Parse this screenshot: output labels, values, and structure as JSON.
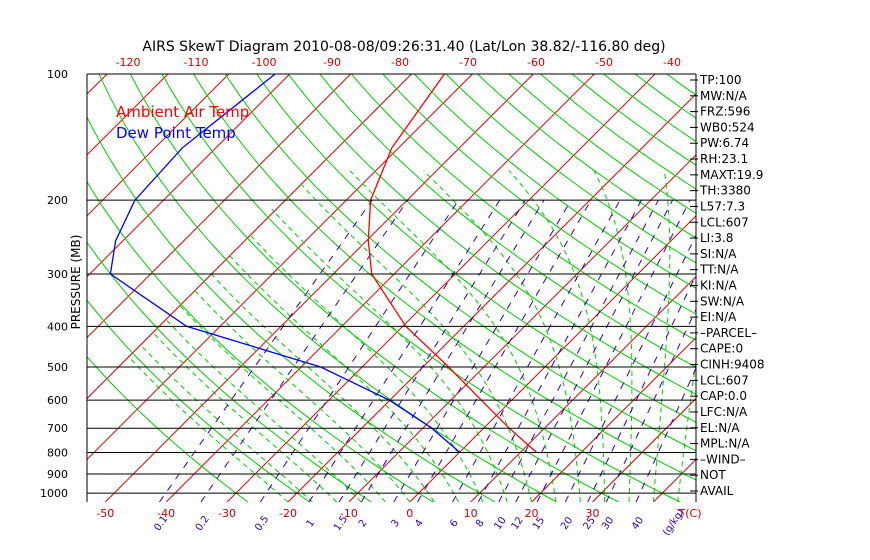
{
  "chart_data": {
    "type": "line",
    "title": "AIRS SkewT Diagram 2010-08-08/09:26:31.40 (Lat/Lon 38.82/-116.80 deg)",
    "ylabel": "PRESSURE (MB)",
    "y_scale": "log",
    "ylim": [
      1050,
      100
    ],
    "xlim_bottom": [
      -53,
      47
    ],
    "pressure_ticks": [
      100,
      200,
      300,
      400,
      500,
      600,
      700,
      800,
      900,
      1000
    ],
    "bottom_temp_ticks": [
      -50,
      -40,
      -30,
      -20,
      -10,
      0,
      10,
      20,
      30
    ],
    "bottom_temp_unit": "T(C)",
    "top_temp_ticks": [
      -120,
      -110,
      -100,
      -90,
      -80,
      -70,
      -60,
      -50,
      -40
    ],
    "mixing_ratio_ticks": [
      "0.1",
      "0.2",
      "0.5",
      "1",
      "1.5",
      "2",
      "3",
      "4",
      "6",
      "8",
      "10",
      "12",
      "15",
      "20",
      "25",
      "30",
      "40"
    ],
    "mixing_ratio_unit": "(g/kg)",
    "legend": [
      {
        "name": "Ambient Air Temp",
        "color": "#ff0000"
      },
      {
        "name": "Dew Point Temp",
        "color": "#0000ff"
      }
    ],
    "series": [
      {
        "name": "Ambient Air Temp",
        "color": "#ff0000",
        "points": [
          {
            "p": 100,
            "t": -64.6
          },
          {
            "p": 150,
            "t": -61.1
          },
          {
            "p": 200,
            "t": -56.0
          },
          {
            "p": 250,
            "t": -49.7
          },
          {
            "p": 300,
            "t": -43.7
          },
          {
            "p": 400,
            "t": -29.5
          },
          {
            "p": 500,
            "t": -15.8
          },
          {
            "p": 600,
            "t": -5.0
          },
          {
            "p": 700,
            "t": 4.2
          },
          {
            "p": 800,
            "t": 12.7
          }
        ]
      },
      {
        "name": "Dew Point Temp",
        "color": "#0000ff",
        "points": [
          {
            "p": 100,
            "t": -92.4
          },
          {
            "p": 150,
            "t": -95.5
          },
          {
            "p": 200,
            "t": -94.7
          },
          {
            "p": 250,
            "t": -91.2
          },
          {
            "p": 300,
            "t": -86.6
          },
          {
            "p": 400,
            "t": -65.5
          },
          {
            "p": 500,
            "t": -36.8
          },
          {
            "p": 600,
            "t": -20.1
          },
          {
            "p": 700,
            "t": -8.5
          },
          {
            "p": 800,
            "t": 0.1
          }
        ]
      }
    ],
    "indices": [
      "TP:100",
      "MW:N/A",
      "FRZ:596",
      "WB0:524",
      "PW:6.74",
      "RH:23.1",
      "MAXT:19.9",
      "TH:3380",
      "L57:7.3",
      "LCL:607",
      "LI:3.8",
      "SI:N/A",
      "TT:N/A",
      "KI:N/A",
      "SW:N/A",
      "EI:N/A",
      "–PARCEL–",
      "CAPE:0",
      "CINH:9408",
      "LCL:607",
      "CAP:0.0",
      "LFC:N/A",
      "EL:N/A",
      "MPL:N/A",
      "–WIND–",
      "NOT",
      "AVAIL"
    ],
    "colors": {
      "temperature": "#ff0000",
      "dewpoint": "#0000ff",
      "isotherm": "#dd0000",
      "dry_adiabat": "#00cc00",
      "moist_adiabat": "#00cc00",
      "mixing_ratio": "#3300aa",
      "isobar": "#000000",
      "top_tick_labels": "#cc0000",
      "bottom_tick_labels": "#cc0000",
      "mixing_labels": "#3300aa"
    }
  }
}
